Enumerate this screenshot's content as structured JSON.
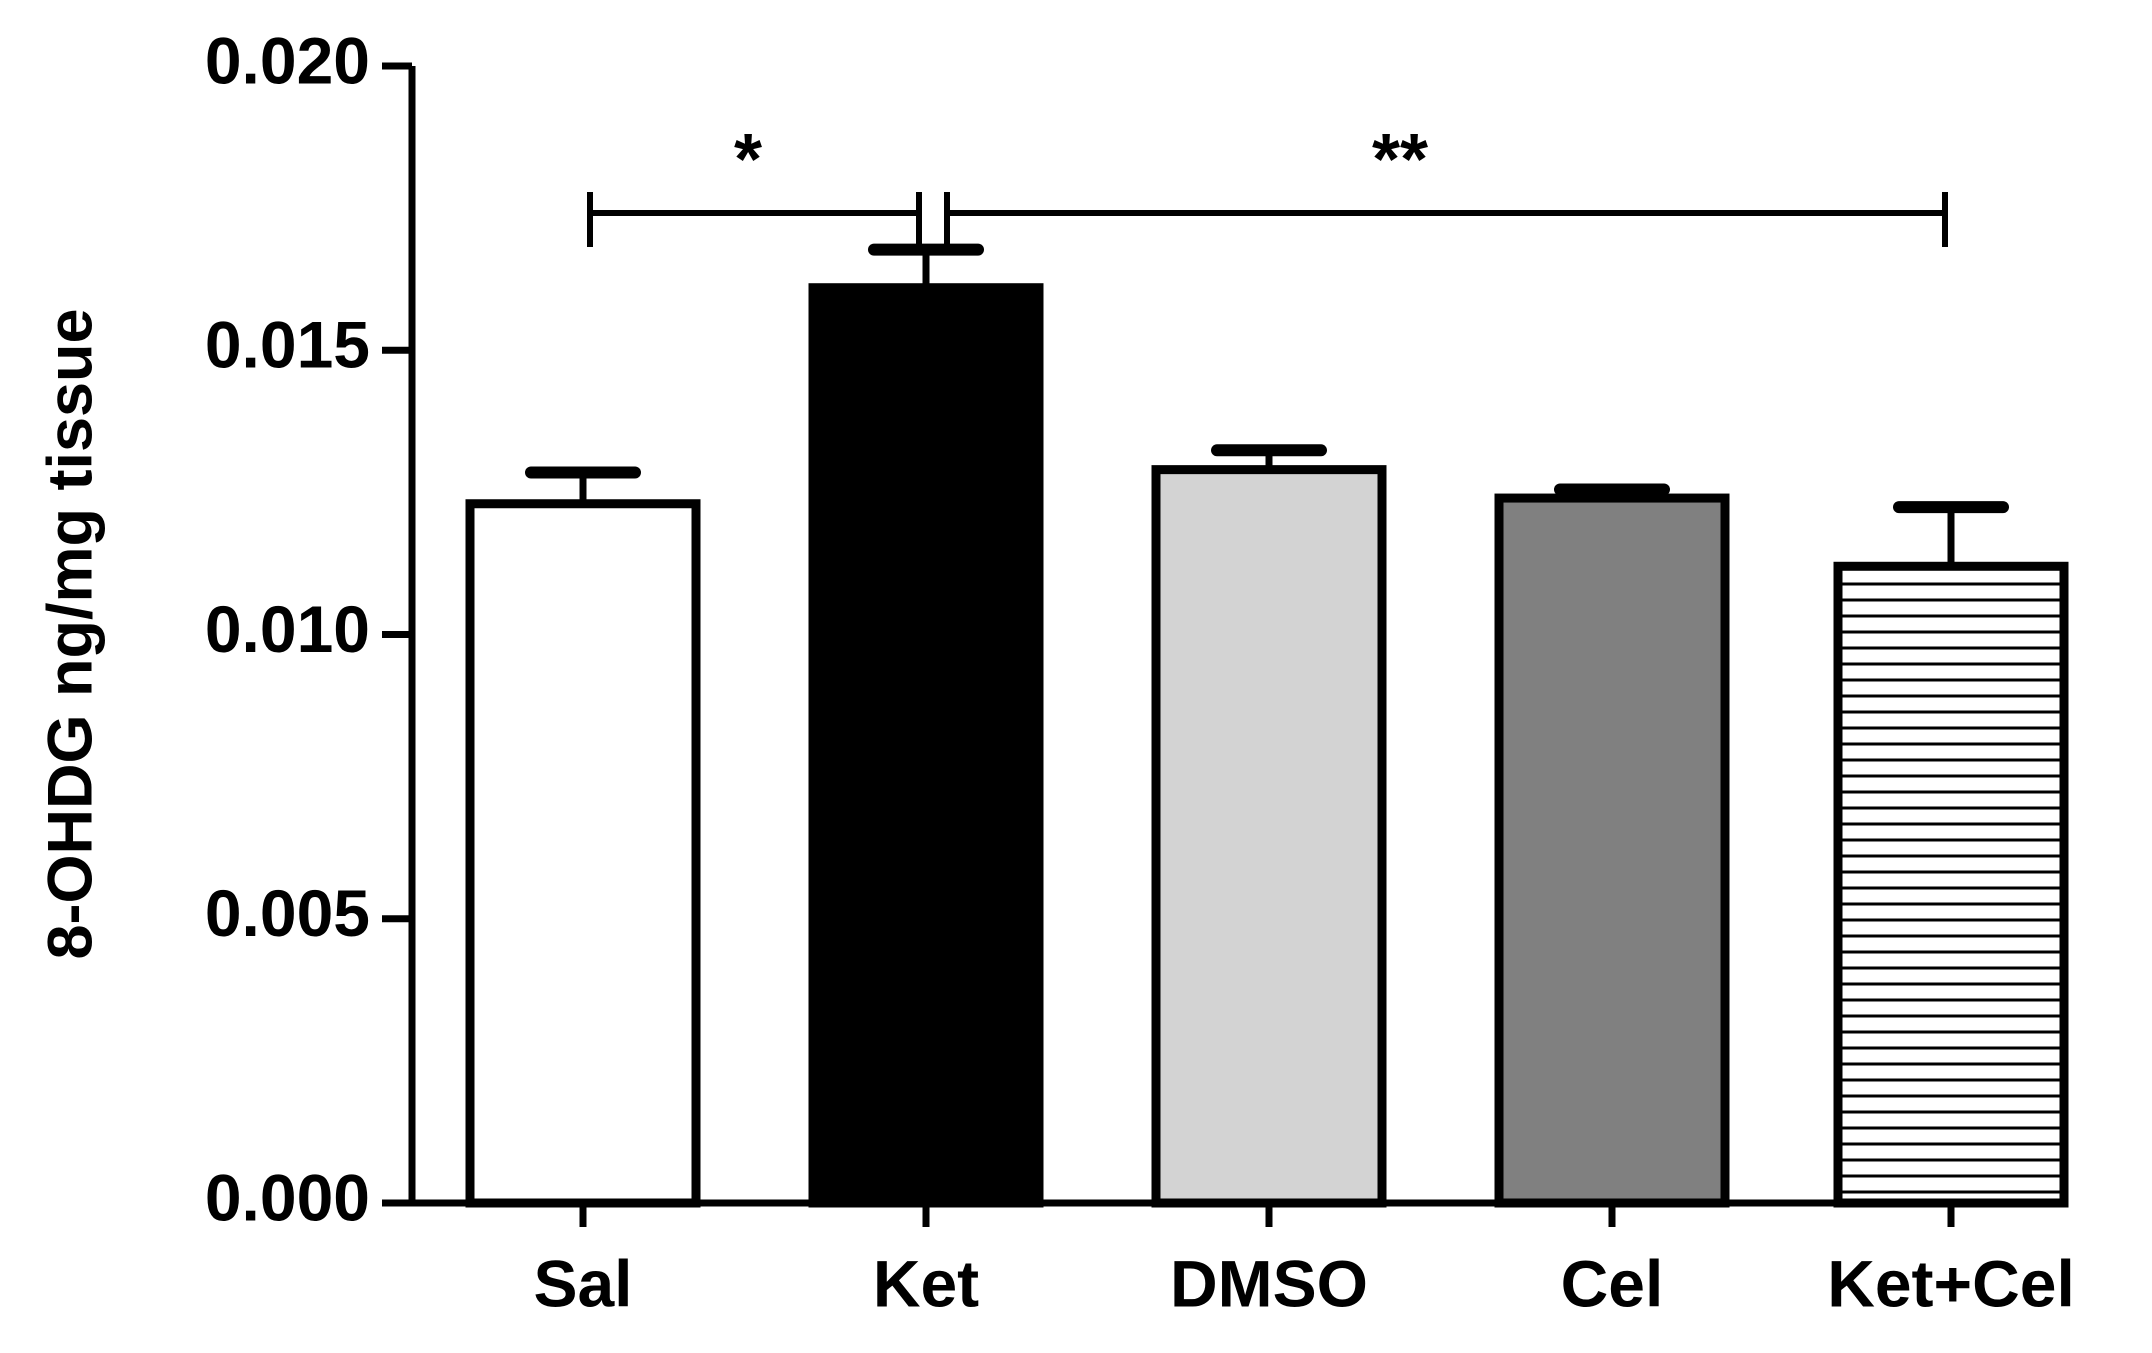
{
  "chart_data": {
    "type": "bar",
    "y_label": "8-OHDG ng/mg tissue",
    "categories": [
      "Sal",
      "Ket",
      "DMSO",
      "Cel",
      "Ket+Cel"
    ],
    "values": [
      0.0123,
      0.0161,
      0.0129,
      0.0124,
      0.0112
    ],
    "errors": [
      0.00055,
      0.00067,
      0.00034,
      0.00015,
      0.00104
    ],
    "colors": [
      "#ffffff",
      "#000000",
      "#d3d3d3",
      "#808080",
      "#ffffff"
    ],
    "hatch": [
      false,
      false,
      false,
      false,
      true
    ],
    "ylim": [
      0,
      0.02
    ],
    "yticks": [
      {
        "value": 0,
        "label": "0.000"
      },
      {
        "value": 0.005,
        "label": "0.005"
      },
      {
        "value": 0.01,
        "label": "0.010"
      },
      {
        "value": 0.015,
        "label": "0.015"
      },
      {
        "value": 0.02,
        "label": "0.020"
      }
    ],
    "annotations": [
      "*",
      "**"
    ]
  }
}
